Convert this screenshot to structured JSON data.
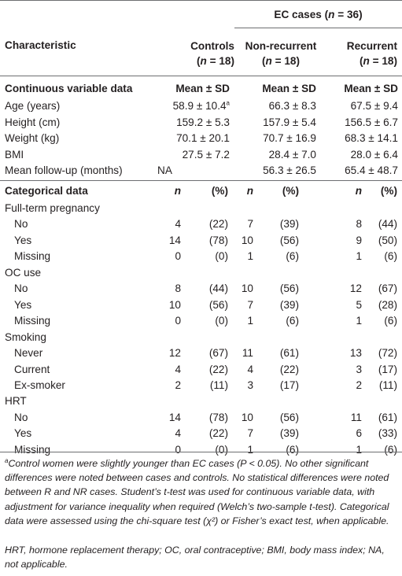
{
  "header": {
    "group_title": "EC cases (n = 36)",
    "group_title_pre": "EC cases (",
    "group_title_n": "n",
    "group_title_post": " = 36)",
    "characteristic": "Characteristic",
    "controls": "Controls",
    "controls_n": "(n = 18)",
    "nonrec": "Non-recurrent",
    "nonrec_n": "(n = 18)",
    "rec": "Recurrent",
    "rec_n": "(n = 18)",
    "n_open": "(",
    "n_letter": "n",
    "n_close": " = 18)"
  },
  "continuous": {
    "section_label": "Continuous variable data",
    "stat_label": "Mean ± SD",
    "rows": [
      {
        "label": "Age (years)",
        "controls": "58.9 ± 10.4",
        "controls_sup": "a",
        "nonrec": "66.3 ± 8.3",
        "rec": "67.5 ± 9.4"
      },
      {
        "label": "Height (cm)",
        "controls": "159.2 ± 5.3",
        "controls_sup": "",
        "nonrec": "157.9 ± 5.4",
        "rec": "156.5 ± 6.7"
      },
      {
        "label": "Weight (kg)",
        "controls": "70.1 ± 20.1",
        "controls_sup": "",
        "nonrec": "70.7 ± 16.9",
        "rec": "68.3 ± 14.1"
      },
      {
        "label": "BMI",
        "controls": "27.5 ± 7.2",
        "controls_sup": "",
        "nonrec": "28.4 ± 7.0",
        "rec": "28.0 ± 6.4"
      },
      {
        "label": "Mean follow-up (months)",
        "controls": "NA",
        "controls_sup": "",
        "nonrec": "56.3 ± 26.5",
        "rec": "65.4 ± 48.7"
      }
    ]
  },
  "categorical": {
    "section_label": "Categorical data",
    "n_label": "n",
    "pct_label": "(%)",
    "groups": [
      {
        "label": "Full-term pregnancy",
        "rows": [
          {
            "label": "No",
            "c_n": "4",
            "c_p": "(22)",
            "nr_n": "7",
            "nr_p": "(39)",
            "r_n": "8",
            "r_p": "(44)"
          },
          {
            "label": "Yes",
            "c_n": "14",
            "c_p": "(78)",
            "nr_n": "10",
            "nr_p": "(56)",
            "r_n": "9",
            "r_p": "(50)"
          },
          {
            "label": "Missing",
            "c_n": "0",
            "c_p": "(0)",
            "nr_n": "1",
            "nr_p": "(6)",
            "r_n": "1",
            "r_p": "(6)"
          }
        ]
      },
      {
        "label": "OC use",
        "rows": [
          {
            "label": "No",
            "c_n": "8",
            "c_p": "(44)",
            "nr_n": "10",
            "nr_p": "(56)",
            "r_n": "12",
            "r_p": "(67)"
          },
          {
            "label": "Yes",
            "c_n": "10",
            "c_p": "(56)",
            "nr_n": "7",
            "nr_p": "(39)",
            "r_n": "5",
            "r_p": "(28)"
          },
          {
            "label": "Missing",
            "c_n": "0",
            "c_p": "(0)",
            "nr_n": "1",
            "nr_p": "(6)",
            "r_n": "1",
            "r_p": "(6)"
          }
        ]
      },
      {
        "label": "Smoking",
        "rows": [
          {
            "label": "Never",
            "c_n": "12",
            "c_p": "(67)",
            "nr_n": "11",
            "nr_p": "(61)",
            "r_n": "13",
            "r_p": "(72)"
          },
          {
            "label": "Current",
            "c_n": "4",
            "c_p": "(22)",
            "nr_n": "4",
            "nr_p": "(22)",
            "r_n": "3",
            "r_p": "(17)"
          },
          {
            "label": "Ex-smoker",
            "c_n": "2",
            "c_p": "(11)",
            "nr_n": "3",
            "nr_p": "(17)",
            "r_n": "2",
            "r_p": "(11)"
          }
        ]
      },
      {
        "label": "HRT",
        "rows": [
          {
            "label": "No",
            "c_n": "14",
            "c_p": "(78)",
            "nr_n": "10",
            "nr_p": "(56)",
            "r_n": "11",
            "r_p": "(61)"
          },
          {
            "label": "Yes",
            "c_n": "4",
            "c_p": "(22)",
            "nr_n": "7",
            "nr_p": "(39)",
            "r_n": "6",
            "r_p": "(33)"
          },
          {
            "label": "Missing",
            "c_n": "0",
            "c_p": "(0)",
            "nr_n": "1",
            "nr_p": "(6)",
            "r_n": "1",
            "r_p": "(6)"
          }
        ]
      }
    ]
  },
  "footnotes": {
    "a_marker": "a",
    "a_text": "Control women were slightly younger than EC cases (P < 0.05). No other significant differences were noted between cases and controls. No statistical differences were noted between R and NR cases. Student’s t-test was used for continuous variable data, with adjustment for variance inequality when required (Welch’s two-sample t-test). Categorical data were assessed using the chi-square test (χ²) or Fisher’s exact test, when applicable.",
    "abbrev": "HRT, hormone replacement therapy; OC, oral contraceptive; BMI, body mass index; NA, not applicable."
  }
}
